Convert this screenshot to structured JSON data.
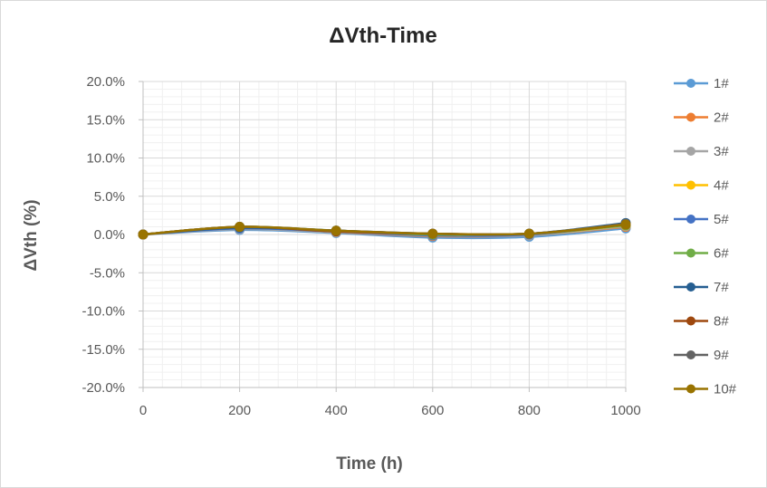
{
  "chart_data": {
    "type": "line",
    "title": "ΔVth-Time",
    "xlabel": "Time (h)",
    "ylabel": "ΔVth (%)",
    "x": [
      0,
      200,
      400,
      600,
      800,
      1000
    ],
    "x_ticks": [
      "0",
      "200",
      "400",
      "600",
      "800",
      "1000"
    ],
    "xlim": [
      0,
      1000
    ],
    "ylim": [
      -20,
      20
    ],
    "y_ticks": [
      "20.0%",
      "15.0%",
      "10.0%",
      "5.0%",
      "0.0%",
      "-5.0%",
      "-10.0%",
      "-15.0%",
      "-20.0%"
    ],
    "y_tick_values": [
      20,
      15,
      10,
      5,
      0,
      -5,
      -10,
      -15,
      -20
    ],
    "grid": true,
    "legend_position": "right",
    "series": [
      {
        "name": "1#",
        "color": "#5b9bd5",
        "values": [
          0,
          0.6,
          0.2,
          -0.4,
          -0.3,
          0.8
        ]
      },
      {
        "name": "2#",
        "color": "#ed7d31",
        "values": [
          0,
          0.8,
          0.3,
          -0.2,
          -0.1,
          1.0
        ]
      },
      {
        "name": "3#",
        "color": "#a5a5a5",
        "values": [
          0,
          0.7,
          0.3,
          -0.1,
          -0.1,
          1.1
        ]
      },
      {
        "name": "4#",
        "color": "#ffc000",
        "values": [
          0,
          0.9,
          0.4,
          0.0,
          0.0,
          1.2
        ]
      },
      {
        "name": "5#",
        "color": "#4472c4",
        "values": [
          0,
          0.8,
          0.4,
          -0.1,
          0.0,
          1.3
        ]
      },
      {
        "name": "6#",
        "color": "#70ad47",
        "values": [
          0,
          1.0,
          0.5,
          0.0,
          0.1,
          1.2
        ]
      },
      {
        "name": "7#",
        "color": "#255e91",
        "values": [
          0,
          0.9,
          0.5,
          0.1,
          0.1,
          1.5
        ]
      },
      {
        "name": "8#",
        "color": "#9e480e",
        "values": [
          0,
          1.0,
          0.4,
          0.1,
          0.1,
          1.3
        ]
      },
      {
        "name": "9#",
        "color": "#636363",
        "values": [
          0,
          1.0,
          0.5,
          0.1,
          0.1,
          1.4
        ]
      },
      {
        "name": "10#",
        "color": "#997300",
        "values": [
          0,
          1.0,
          0.5,
          0.1,
          0.1,
          1.3
        ]
      }
    ]
  }
}
